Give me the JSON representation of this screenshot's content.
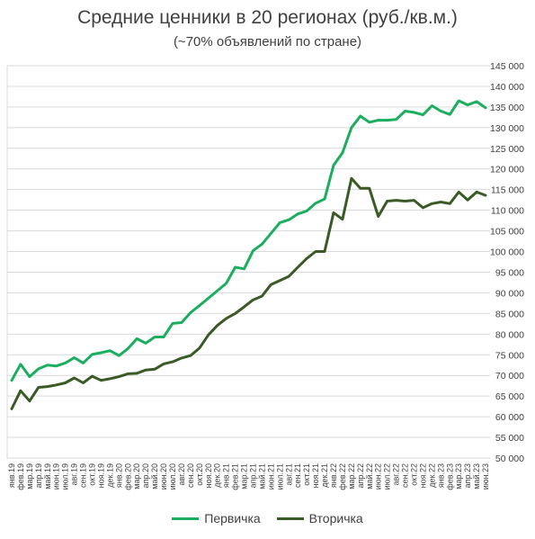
{
  "chart_data": {
    "type": "line",
    "title": "Средние ценники в 20 регионах (руб./кв.м.)",
    "subtitle": "(~70% объявлений по стране)",
    "xlabel": "",
    "ylabel": "",
    "ylim": [
      50000,
      145000
    ],
    "ytick_step": 5000,
    "ytick_labels": [
      "50 000",
      "55 000",
      "60 000",
      "65 000",
      "70 000",
      "75 000",
      "80 000",
      "85 000",
      "90 000",
      "95 000",
      "100 000",
      "105 000",
      "110 000",
      "115 000",
      "120 000",
      "125 000",
      "130 000",
      "135 000",
      "140 000",
      "145 000"
    ],
    "grid": true,
    "y_axis_position": "right",
    "legend_position": "bottom",
    "x": [
      "янв.19",
      "фев.19",
      "мар.19",
      "апр.19",
      "май.19",
      "июн.19",
      "июл.19",
      "авг.19",
      "сен.19",
      "окт.19",
      "ноя.19",
      "дек.19",
      "янв.20",
      "фев.20",
      "мар.20",
      "апр.20",
      "май.20",
      "июн.20",
      "июл.20",
      "авг.20",
      "сен.20",
      "окт.20",
      "ноя.20",
      "дек.20",
      "янв.21",
      "фев.21",
      "мар.21",
      "апр.21",
      "май.21",
      "июн.21",
      "июл.21",
      "авг.21",
      "сен.21",
      "окт.21",
      "ноя.21",
      "дек.21",
      "янв.22",
      "фев.22",
      "мар.22",
      "апр.22",
      "май.22",
      "июн.22",
      "июл.22",
      "авг.22",
      "сен.22",
      "окт.22",
      "ноя.22",
      "дек.22",
      "янв.23",
      "фев.23",
      "мар.23",
      "апр.23",
      "май.23",
      "июн.23"
    ],
    "series": [
      {
        "name": "Первичка",
        "color": "#1aae5e",
        "values": [
          68800,
          72700,
          69700,
          71600,
          72500,
          72300,
          73000,
          74300,
          73000,
          75100,
          75500,
          76000,
          74800,
          76500,
          78900,
          77800,
          79300,
          79300,
          82600,
          82800,
          85200,
          86900,
          88700,
          90500,
          92300,
          96200,
          95800,
          100200,
          101800,
          104400,
          107000,
          107700,
          109100,
          109800,
          111700,
          112700,
          120900,
          123900,
          130000,
          132800,
          131300,
          131800,
          131800,
          132000,
          134000,
          133700,
          133100,
          135300,
          134000,
          133200,
          136500,
          135500,
          136300,
          134800
        ]
      },
      {
        "name": "Вторичка",
        "color": "#3a5a26",
        "values": [
          61900,
          66300,
          63800,
          67100,
          67300,
          67700,
          68200,
          69400,
          68200,
          69800,
          68800,
          69200,
          69700,
          70400,
          70500,
          71300,
          71500,
          72800,
          73300,
          74200,
          74800,
          76600,
          79800,
          82100,
          83800,
          85000,
          86600,
          88300,
          89200,
          92000,
          93000,
          94000,
          96200,
          98300,
          100000,
          100000,
          109400,
          107800,
          117700,
          115300,
          115300,
          108500,
          112200,
          112400,
          112200,
          112400,
          110600,
          111600,
          112000,
          111600,
          114400,
          112500,
          114400,
          113600
        ]
      }
    ]
  }
}
